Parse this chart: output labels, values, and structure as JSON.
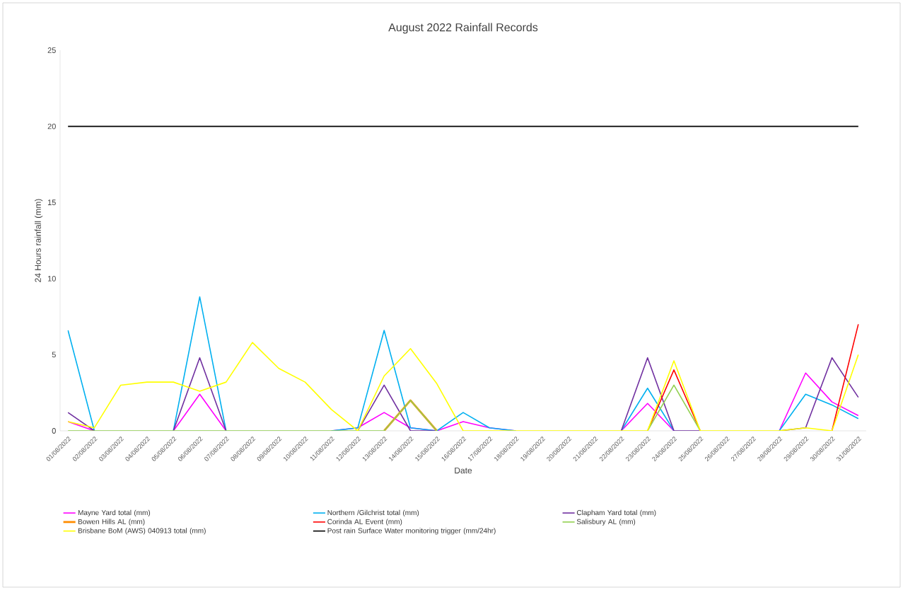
{
  "chart_data": {
    "type": "line",
    "title": "August 2022 Rainfall Records",
    "xlabel": "Date",
    "ylabel": "24 Hours rainfall (mm)",
    "categories": [
      "01/08/2022",
      "02/08/2022",
      "03/08/2022",
      "04/08/2022",
      "05/08/2022",
      "06/08/2022",
      "07/08/2022",
      "08/08/2022",
      "09/08/2022",
      "10/08/2022",
      "11/08/2022",
      "12/08/2022",
      "13/08/2022",
      "14/08/2022",
      "15/08/2022",
      "16/08/2022",
      "17/08/2022",
      "18/08/2022",
      "19/08/2022",
      "20/08/2022",
      "21/08/2022",
      "22/08/2022",
      "23/08/2022",
      "24/08/2022",
      "25/08/2022",
      "26/08/2022",
      "27/08/2022",
      "28/08/2022",
      "29/08/2022",
      "30/08/2022",
      "31/08/2022"
    ],
    "ylim": [
      0,
      25
    ],
    "yticks": [
      0,
      5,
      10,
      15,
      20,
      25
    ],
    "legend": "bottom",
    "marker": "none",
    "line_style": "solid",
    "series": [
      {
        "name": "Mayne Yard total (mm)",
        "color": "#ff00ff",
        "values": [
          0.6,
          0,
          null,
          null,
          0,
          2.4,
          0,
          null,
          null,
          null,
          0,
          0.2,
          1.2,
          0.2,
          0,
          0.6,
          0.2,
          0,
          null,
          null,
          null,
          0,
          1.8,
          0,
          null,
          null,
          null,
          0,
          3.8,
          1.9,
          1.0
        ]
      },
      {
        "name": "Northern  /Gilchrist total (mm)",
        "color": "#00b0f0",
        "values": [
          6.6,
          0,
          null,
          null,
          0,
          8.8,
          0,
          null,
          null,
          null,
          0,
          0.2,
          6.6,
          0.2,
          0,
          1.2,
          0.2,
          0,
          null,
          null,
          null,
          0,
          2.8,
          0,
          null,
          null,
          null,
          0,
          2.4,
          1.7,
          0.8
        ]
      },
      {
        "name": "Clapham Yard total (mm)",
        "color": "#7030a0",
        "values": [
          1.2,
          0,
          null,
          null,
          0,
          4.8,
          0,
          null,
          null,
          null,
          null,
          0,
          3.0,
          0,
          0,
          null,
          null,
          null,
          null,
          null,
          null,
          0,
          4.8,
          0,
          0,
          null,
          null,
          0,
          0.2,
          4.8,
          2.2
        ]
      },
      {
        "name": "Bowen Hills AL (mm)",
        "color": "#ff8c00",
        "values": [
          null,
          null,
          null,
          null,
          null,
          null,
          null,
          null,
          null,
          null,
          null,
          null,
          0,
          2.0,
          0,
          null,
          null,
          null,
          null,
          null,
          null,
          null,
          null,
          null,
          null,
          null,
          null,
          null,
          null,
          null,
          null
        ]
      },
      {
        "name": "Corinda AL Event (mm)",
        "color": "#ff0000",
        "values": [
          null,
          null,
          null,
          null,
          null,
          null,
          null,
          null,
          null,
          null,
          null,
          null,
          null,
          null,
          null,
          null,
          null,
          null,
          null,
          null,
          null,
          null,
          0,
          4.0,
          0,
          null,
          null,
          null,
          null,
          0,
          7.0
        ]
      },
      {
        "name": "Salisbury AL (mm)",
        "color": "#92d050",
        "values": [
          0,
          0,
          0,
          0,
          0,
          0,
          0,
          0,
          0,
          0,
          0,
          0,
          0,
          2.0,
          0,
          null,
          null,
          null,
          null,
          null,
          null,
          null,
          0,
          3.0,
          0,
          null,
          null,
          null,
          null,
          null,
          null
        ]
      },
      {
        "name": "Brisbane BoM (AWS) 040913 total (mm)",
        "color": "#ffff00",
        "values": [
          0.6,
          0.2,
          3.0,
          3.2,
          3.2,
          2.6,
          3.2,
          5.8,
          4.1,
          3.2,
          1.4,
          0,
          3.6,
          5.4,
          3.1,
          0,
          0,
          0,
          0,
          0,
          0,
          0,
          0,
          4.6,
          0,
          0,
          0,
          0,
          0.2,
          0,
          5.0
        ]
      },
      {
        "name": "Post rain Surface Water monitoring trigger (mm/24hr)",
        "color": "#000000",
        "values": [
          20,
          20,
          20,
          20,
          20,
          20,
          20,
          20,
          20,
          20,
          20,
          20,
          20,
          20,
          20,
          20,
          20,
          20,
          20,
          20,
          20,
          20,
          20,
          20,
          20,
          20,
          20,
          20,
          20,
          20,
          20
        ]
      }
    ]
  }
}
